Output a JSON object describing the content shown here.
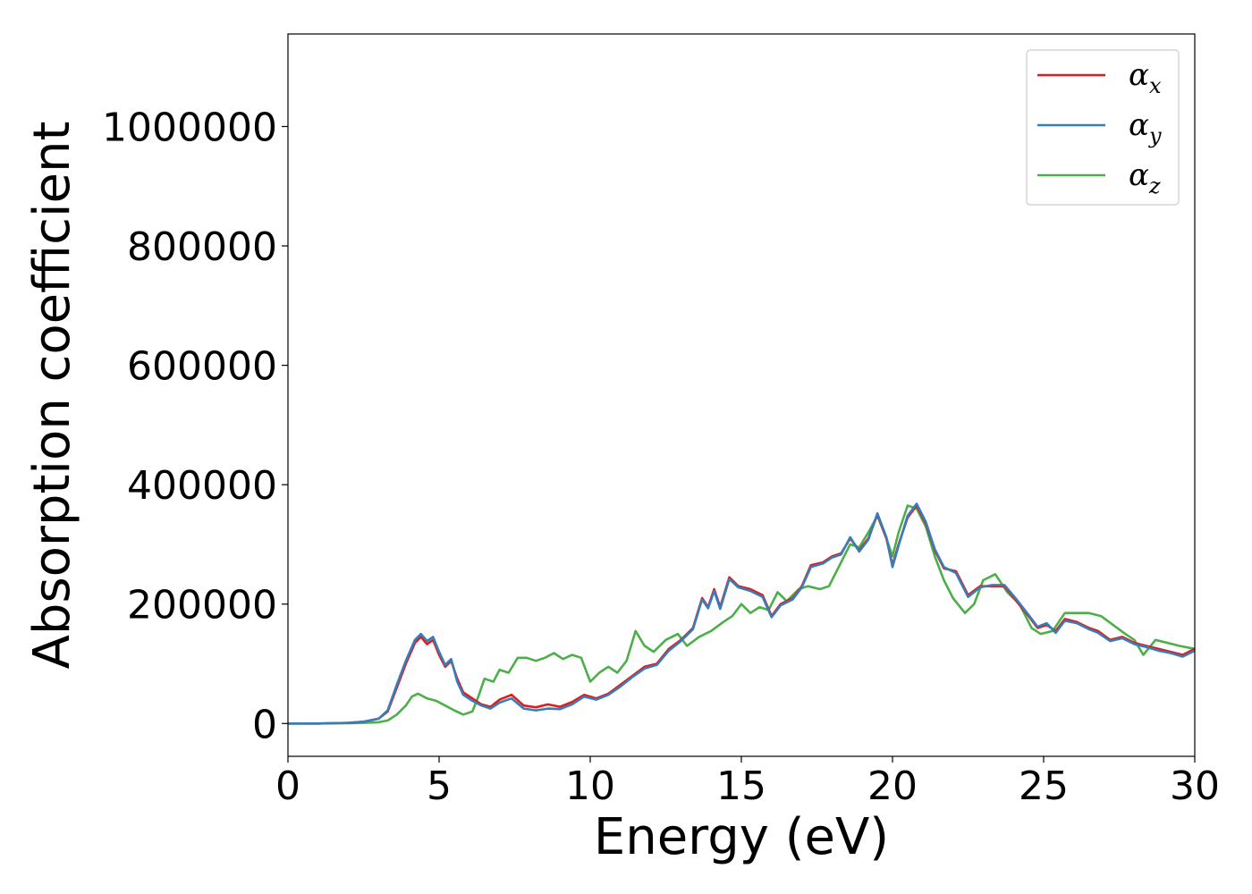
{
  "chart_data": {
    "type": "line",
    "title": "",
    "xlabel": "Energy (eV)",
    "ylabel": "Absorption coefficient",
    "xlim": [
      0,
      30
    ],
    "ylim": [
      -55000,
      1155000
    ],
    "xticks": [
      0,
      5,
      10,
      15,
      20,
      25,
      30
    ],
    "yticks": [
      0,
      200000,
      400000,
      600000,
      800000,
      1000000
    ],
    "xtick_labels": [
      "0",
      "5",
      "10",
      "15",
      "20",
      "25",
      "30"
    ],
    "ytick_labels": [
      "0",
      "200000",
      "400000",
      "600000",
      "800000",
      "1000000"
    ],
    "grid": false,
    "legend_position": "top-right",
    "series": [
      {
        "name": "α_x",
        "label_main": "α",
        "label_sub": "x",
        "color": "#e41a1c",
        "points": [
          [
            0,
            0
          ],
          [
            1,
            0
          ],
          [
            2,
            1000
          ],
          [
            2.5,
            3000
          ],
          [
            3,
            8000
          ],
          [
            3.3,
            20000
          ],
          [
            3.6,
            60000
          ],
          [
            3.9,
            100000
          ],
          [
            4.2,
            135000
          ],
          [
            4.4,
            145000
          ],
          [
            4.6,
            133000
          ],
          [
            4.8,
            140000
          ],
          [
            5.0,
            115000
          ],
          [
            5.2,
            95000
          ],
          [
            5.4,
            105000
          ],
          [
            5.6,
            75000
          ],
          [
            5.8,
            52000
          ],
          [
            6.1,
            42000
          ],
          [
            6.4,
            32000
          ],
          [
            6.7,
            28000
          ],
          [
            7.0,
            40000
          ],
          [
            7.4,
            48000
          ],
          [
            7.8,
            30000
          ],
          [
            8.2,
            27000
          ],
          [
            8.6,
            32000
          ],
          [
            9.0,
            28000
          ],
          [
            9.4,
            36000
          ],
          [
            9.8,
            48000
          ],
          [
            10.2,
            42000
          ],
          [
            10.6,
            50000
          ],
          [
            11.0,
            65000
          ],
          [
            11.4,
            80000
          ],
          [
            11.8,
            95000
          ],
          [
            12.2,
            100000
          ],
          [
            12.6,
            125000
          ],
          [
            13.0,
            140000
          ],
          [
            13.4,
            160000
          ],
          [
            13.7,
            210000
          ],
          [
            13.9,
            195000
          ],
          [
            14.1,
            225000
          ],
          [
            14.3,
            195000
          ],
          [
            14.6,
            245000
          ],
          [
            14.9,
            230000
          ],
          [
            15.3,
            225000
          ],
          [
            15.7,
            215000
          ],
          [
            16.0,
            180000
          ],
          [
            16.3,
            200000
          ],
          [
            16.7,
            210000
          ],
          [
            17.0,
            230000
          ],
          [
            17.3,
            265000
          ],
          [
            17.7,
            270000
          ],
          [
            18.0,
            280000
          ],
          [
            18.3,
            285000
          ],
          [
            18.6,
            310000
          ],
          [
            18.9,
            290000
          ],
          [
            19.2,
            310000
          ],
          [
            19.5,
            350000
          ],
          [
            19.8,
            310000
          ],
          [
            20.0,
            265000
          ],
          [
            20.2,
            300000
          ],
          [
            20.5,
            345000
          ],
          [
            20.8,
            365000
          ],
          [
            21.1,
            335000
          ],
          [
            21.4,
            290000
          ],
          [
            21.7,
            260000
          ],
          [
            22.1,
            255000
          ],
          [
            22.5,
            215000
          ],
          [
            22.9,
            230000
          ],
          [
            23.3,
            230000
          ],
          [
            23.7,
            230000
          ],
          [
            24.1,
            205000
          ],
          [
            24.5,
            180000
          ],
          [
            24.8,
            160000
          ],
          [
            25.1,
            165000
          ],
          [
            25.4,
            155000
          ],
          [
            25.7,
            175000
          ],
          [
            26.1,
            170000
          ],
          [
            26.5,
            160000
          ],
          [
            26.8,
            155000
          ],
          [
            27.2,
            140000
          ],
          [
            27.6,
            145000
          ],
          [
            28.0,
            135000
          ],
          [
            28.4,
            130000
          ],
          [
            28.8,
            125000
          ],
          [
            29.2,
            120000
          ],
          [
            29.6,
            115000
          ],
          [
            30.0,
            125000
          ]
        ]
      },
      {
        "name": "α_y",
        "label_main": "α",
        "label_sub": "y",
        "color": "#377eb8",
        "points": [
          [
            0,
            0
          ],
          [
            1,
            0
          ],
          [
            2,
            1000
          ],
          [
            2.5,
            3000
          ],
          [
            3,
            8000
          ],
          [
            3.3,
            22000
          ],
          [
            3.6,
            65000
          ],
          [
            3.9,
            105000
          ],
          [
            4.2,
            140000
          ],
          [
            4.4,
            150000
          ],
          [
            4.6,
            138000
          ],
          [
            4.8,
            145000
          ],
          [
            5.0,
            120000
          ],
          [
            5.2,
            98000
          ],
          [
            5.4,
            108000
          ],
          [
            5.6,
            70000
          ],
          [
            5.8,
            48000
          ],
          [
            6.1,
            38000
          ],
          [
            6.4,
            30000
          ],
          [
            6.7,
            25000
          ],
          [
            7.0,
            35000
          ],
          [
            7.4,
            42000
          ],
          [
            7.8,
            25000
          ],
          [
            8.2,
            22000
          ],
          [
            8.6,
            25000
          ],
          [
            9.0,
            24000
          ],
          [
            9.4,
            32000
          ],
          [
            9.8,
            45000
          ],
          [
            10.2,
            40000
          ],
          [
            10.6,
            48000
          ],
          [
            11.0,
            62000
          ],
          [
            11.4,
            78000
          ],
          [
            11.8,
            92000
          ],
          [
            12.2,
            98000
          ],
          [
            12.6,
            122000
          ],
          [
            13.0,
            138000
          ],
          [
            13.4,
            158000
          ],
          [
            13.7,
            208000
          ],
          [
            13.9,
            193000
          ],
          [
            14.1,
            222000
          ],
          [
            14.3,
            192000
          ],
          [
            14.6,
            242000
          ],
          [
            14.9,
            228000
          ],
          [
            15.3,
            222000
          ],
          [
            15.7,
            212000
          ],
          [
            16.0,
            178000
          ],
          [
            16.3,
            198000
          ],
          [
            16.7,
            208000
          ],
          [
            17.0,
            228000
          ],
          [
            17.3,
            262000
          ],
          [
            17.7,
            268000
          ],
          [
            18.0,
            278000
          ],
          [
            18.3,
            283000
          ],
          [
            18.6,
            312000
          ],
          [
            18.9,
            288000
          ],
          [
            19.2,
            308000
          ],
          [
            19.5,
            352000
          ],
          [
            19.8,
            312000
          ],
          [
            20.0,
            262000
          ],
          [
            20.2,
            298000
          ],
          [
            20.5,
            348000
          ],
          [
            20.8,
            368000
          ],
          [
            21.1,
            338000
          ],
          [
            21.4,
            292000
          ],
          [
            21.7,
            262000
          ],
          [
            22.1,
            252000
          ],
          [
            22.5,
            212000
          ],
          [
            22.9,
            228000
          ],
          [
            23.3,
            232000
          ],
          [
            23.7,
            232000
          ],
          [
            24.1,
            208000
          ],
          [
            24.5,
            182000
          ],
          [
            24.8,
            162000
          ],
          [
            25.1,
            168000
          ],
          [
            25.4,
            152000
          ],
          [
            25.7,
            172000
          ],
          [
            26.1,
            168000
          ],
          [
            26.5,
            158000
          ],
          [
            26.8,
            152000
          ],
          [
            27.2,
            138000
          ],
          [
            27.6,
            143000
          ],
          [
            28.0,
            133000
          ],
          [
            28.4,
            128000
          ],
          [
            28.8,
            122000
          ],
          [
            29.2,
            118000
          ],
          [
            29.6,
            112000
          ],
          [
            30.0,
            122000
          ]
        ]
      },
      {
        "name": "α_z",
        "label_main": "α",
        "label_sub": "z",
        "color": "#4daf4a",
        "points": [
          [
            0,
            0
          ],
          [
            1,
            0
          ],
          [
            2,
            500
          ],
          [
            2.5,
            1000
          ],
          [
            3,
            2000
          ],
          [
            3.3,
            5000
          ],
          [
            3.6,
            15000
          ],
          [
            3.9,
            30000
          ],
          [
            4.1,
            45000
          ],
          [
            4.3,
            50000
          ],
          [
            4.6,
            42000
          ],
          [
            4.9,
            38000
          ],
          [
            5.2,
            30000
          ],
          [
            5.5,
            22000
          ],
          [
            5.8,
            15000
          ],
          [
            6.1,
            20000
          ],
          [
            6.3,
            45000
          ],
          [
            6.5,
            75000
          ],
          [
            6.8,
            70000
          ],
          [
            7.0,
            90000
          ],
          [
            7.3,
            85000
          ],
          [
            7.6,
            110000
          ],
          [
            7.9,
            110000
          ],
          [
            8.2,
            105000
          ],
          [
            8.5,
            110000
          ],
          [
            8.8,
            118000
          ],
          [
            9.1,
            108000
          ],
          [
            9.4,
            115000
          ],
          [
            9.7,
            110000
          ],
          [
            10.0,
            70000
          ],
          [
            10.3,
            85000
          ],
          [
            10.6,
            95000
          ],
          [
            10.9,
            85000
          ],
          [
            11.2,
            105000
          ],
          [
            11.5,
            155000
          ],
          [
            11.8,
            130000
          ],
          [
            12.1,
            120000
          ],
          [
            12.5,
            140000
          ],
          [
            12.9,
            150000
          ],
          [
            13.2,
            130000
          ],
          [
            13.6,
            145000
          ],
          [
            14.0,
            155000
          ],
          [
            14.4,
            170000
          ],
          [
            14.7,
            180000
          ],
          [
            15.0,
            200000
          ],
          [
            15.3,
            185000
          ],
          [
            15.6,
            195000
          ],
          [
            15.9,
            190000
          ],
          [
            16.2,
            220000
          ],
          [
            16.5,
            205000
          ],
          [
            16.9,
            225000
          ],
          [
            17.2,
            230000
          ],
          [
            17.6,
            225000
          ],
          [
            17.9,
            230000
          ],
          [
            18.3,
            270000
          ],
          [
            18.6,
            300000
          ],
          [
            18.9,
            295000
          ],
          [
            19.2,
            320000
          ],
          [
            19.5,
            348000
          ],
          [
            19.8,
            310000
          ],
          [
            20.0,
            280000
          ],
          [
            20.2,
            320000
          ],
          [
            20.5,
            365000
          ],
          [
            20.8,
            360000
          ],
          [
            21.1,
            330000
          ],
          [
            21.4,
            280000
          ],
          [
            21.7,
            240000
          ],
          [
            22.0,
            210000
          ],
          [
            22.4,
            185000
          ],
          [
            22.7,
            200000
          ],
          [
            23.0,
            240000
          ],
          [
            23.4,
            250000
          ],
          [
            23.8,
            220000
          ],
          [
            24.2,
            200000
          ],
          [
            24.6,
            160000
          ],
          [
            24.9,
            150000
          ],
          [
            25.3,
            155000
          ],
          [
            25.7,
            185000
          ],
          [
            26.1,
            185000
          ],
          [
            26.5,
            185000
          ],
          [
            26.9,
            180000
          ],
          [
            27.3,
            165000
          ],
          [
            27.7,
            150000
          ],
          [
            28.0,
            140000
          ],
          [
            28.3,
            115000
          ],
          [
            28.7,
            140000
          ],
          [
            29.1,
            135000
          ],
          [
            29.5,
            130000
          ],
          [
            30.0,
            125000
          ]
        ]
      }
    ]
  }
}
